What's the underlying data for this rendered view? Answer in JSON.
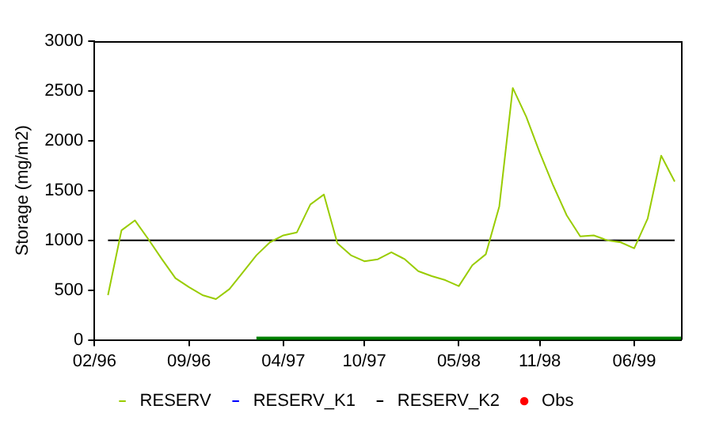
{
  "chart_data": {
    "type": "line",
    "ylabel": "Storage (mg/m2)",
    "x": [
      "1996-03",
      "1996-04",
      "1996-05",
      "1996-06",
      "1996-07",
      "1996-08",
      "1996-09",
      "1996-10",
      "1996-11",
      "1996-12",
      "1997-01",
      "1997-02",
      "1997-03",
      "1997-04",
      "1997-05",
      "1997-06",
      "1997-07",
      "1997-08",
      "1997-09",
      "1997-10",
      "1997-11",
      "1997-12",
      "1998-01",
      "1998-02",
      "1998-03",
      "1998-04",
      "1998-05",
      "1998-06",
      "1998-07",
      "1998-08",
      "1998-09",
      "1998-10",
      "1998-11",
      "1998-12",
      "1999-01",
      "1999-02",
      "1999-03",
      "1999-04",
      "1999-05",
      "1999-06",
      "1999-07",
      "1999-08",
      "1999-09"
    ],
    "series": [
      {
        "name": "RESERV",
        "color": "#99cc00",
        "values": [
          450,
          1100,
          1200,
          1010,
          810,
          620,
          530,
          450,
          410,
          510,
          680,
          850,
          980,
          1050,
          1080,
          1360,
          1460,
          970,
          850,
          790,
          810,
          880,
          810,
          690,
          640,
          600,
          540,
          750,
          860,
          1340,
          2530,
          2240,
          1880,
          1550,
          1250,
          1040,
          1050,
          1000,
          980,
          920,
          1220,
          1850,
          1590
        ]
      },
      {
        "name": "RESERV_K1",
        "color": "#0000ff",
        "values": [
          null,
          null,
          null,
          null,
          null,
          null,
          null,
          null,
          null,
          null,
          null,
          null,
          null,
          null,
          null,
          null,
          null,
          null,
          null,
          null,
          null,
          null,
          null,
          null,
          null,
          null,
          null,
          null,
          null,
          null,
          null,
          null,
          null,
          null,
          null,
          null,
          null,
          null,
          null,
          null,
          null,
          null,
          null
        ]
      },
      {
        "name": "RESERV_K2",
        "color": "#000000",
        "values": [
          1000,
          1000,
          1000,
          1000,
          1000,
          1000,
          1000,
          1000,
          1000,
          1000,
          1000,
          1000,
          1000,
          1000,
          1000,
          1000,
          1000,
          1000,
          1000,
          1000,
          1000,
          1000,
          1000,
          1000,
          1000,
          1000,
          1000,
          1000,
          1000,
          1000,
          1000,
          1000,
          1000,
          1000,
          1000,
          1000,
          1000,
          1000,
          1000,
          1000,
          1000,
          1000,
          1000
        ]
      },
      {
        "name": "Obs",
        "type": "scatter",
        "color": "#ff0000",
        "values": [
          null,
          null,
          null,
          null,
          null,
          null,
          null,
          null,
          null,
          null,
          null,
          null,
          null,
          null,
          null,
          null,
          null,
          null,
          null,
          null,
          null,
          null,
          null,
          null,
          null,
          null,
          null,
          null,
          null,
          null,
          null,
          null,
          null,
          null,
          null,
          null,
          null,
          null,
          null,
          null,
          null,
          null,
          null
        ]
      },
      {
        "color": "#008000",
        "x": [
          "1997-02",
          "1997-08",
          "1998-02",
          "1998-08",
          "1999-02",
          "1999-09-15"
        ],
        "values": [
          0,
          0,
          0,
          0,
          0,
          0
        ]
      }
    ],
    "xlim": [
      "1996-02",
      "1999-09-15"
    ],
    "xticks": [
      {
        "value": "1996-02",
        "label": "02/96"
      },
      {
        "value": "1996-09",
        "label": "09/96"
      },
      {
        "value": "1997-04",
        "label": "04/97"
      },
      {
        "value": "1997-10",
        "label": "10/97"
      },
      {
        "value": "1998-05",
        "label": "05/98"
      },
      {
        "value": "1998-11",
        "label": "11/98"
      },
      {
        "value": "1999-06",
        "label": "06/99"
      }
    ],
    "ylim": [
      0,
      3000
    ],
    "yticks": [
      0,
      500,
      1000,
      1500,
      2000,
      2500,
      3000
    ],
    "grid": false,
    "legend": "bottom",
    "marker": "none",
    "line_style": "solid"
  }
}
